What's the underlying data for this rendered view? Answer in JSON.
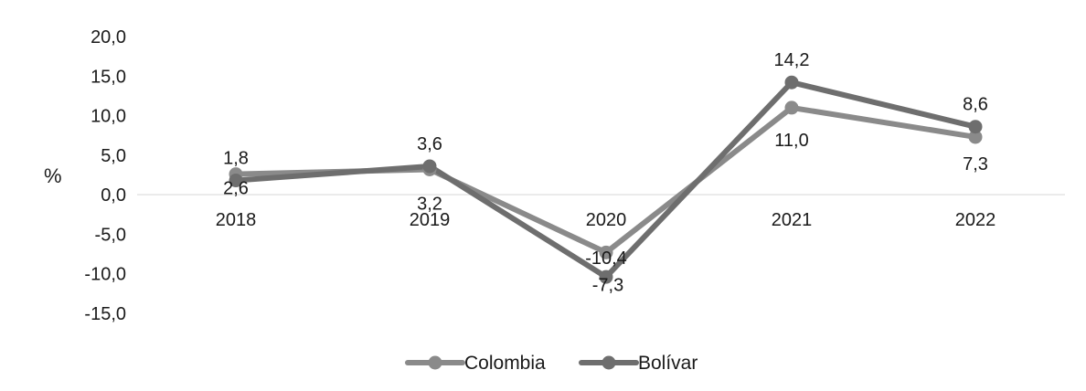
{
  "chart_data": {
    "type": "line",
    "categories": [
      "2018",
      "2019",
      "2020",
      "2021",
      "2022"
    ],
    "series": [
      {
        "name": "Colombia",
        "values": [
          2.6,
          3.2,
          -7.3,
          11.0,
          7.3
        ],
        "labels": [
          "2,6",
          "3,2",
          "-7,3",
          "11,0",
          "7,3"
        ],
        "color": "#8a8a8a"
      },
      {
        "name": "Bolívar",
        "values": [
          1.8,
          3.6,
          -10.4,
          14.2,
          8.6
        ],
        "labels": [
          "1,8",
          "3,6",
          "-10,4",
          "14,2",
          "8,6"
        ],
        "color": "#6e6e6e"
      }
    ],
    "ylabel": "%",
    "ylim": [
      -15,
      20
    ],
    "yticks": [
      20,
      15,
      10,
      5,
      0,
      -5,
      -10,
      -15
    ],
    "ytick_labels": [
      "20,0",
      "15,0",
      "10,0",
      "5,0",
      "0,0",
      "-5,0",
      "-10,0",
      "-15,0"
    ],
    "grid": false,
    "legend_position": "bottom"
  }
}
